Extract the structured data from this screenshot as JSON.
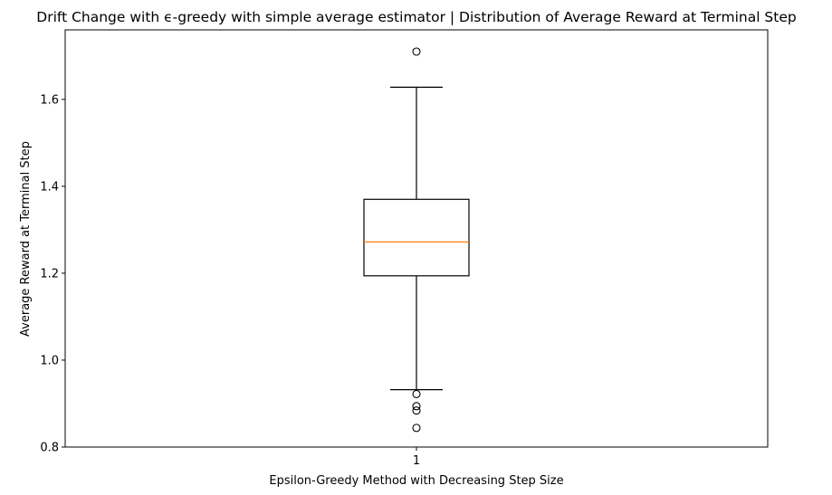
{
  "chart_data": {
    "type": "box",
    "title": "Drift Change with ϵ-greedy with simple average estimator | Distribution of Average Reward at Terminal Step",
    "xlabel": "Epsilon-Greedy Method with Decreasing Step Size",
    "ylabel": "Average Reward at Terminal Step",
    "categories": [
      "1"
    ],
    "ylim": [
      0.8,
      1.76
    ],
    "yticks": [
      0.8,
      1.0,
      1.2,
      1.4,
      1.6
    ],
    "ytick_labels": [
      "0.8",
      "1.0",
      "1.2",
      "1.4",
      "1.6"
    ],
    "boxes": [
      {
        "category": "1",
        "whisker_low": 0.932,
        "q1": 1.194,
        "median": 1.272,
        "q3": 1.37,
        "whisker_high": 1.628,
        "outliers": [
          1.71,
          0.922,
          0.894,
          0.884,
          0.844
        ]
      }
    ],
    "colors": {
      "median": "#ff7f0e",
      "box": "#000000"
    },
    "grid": false
  }
}
